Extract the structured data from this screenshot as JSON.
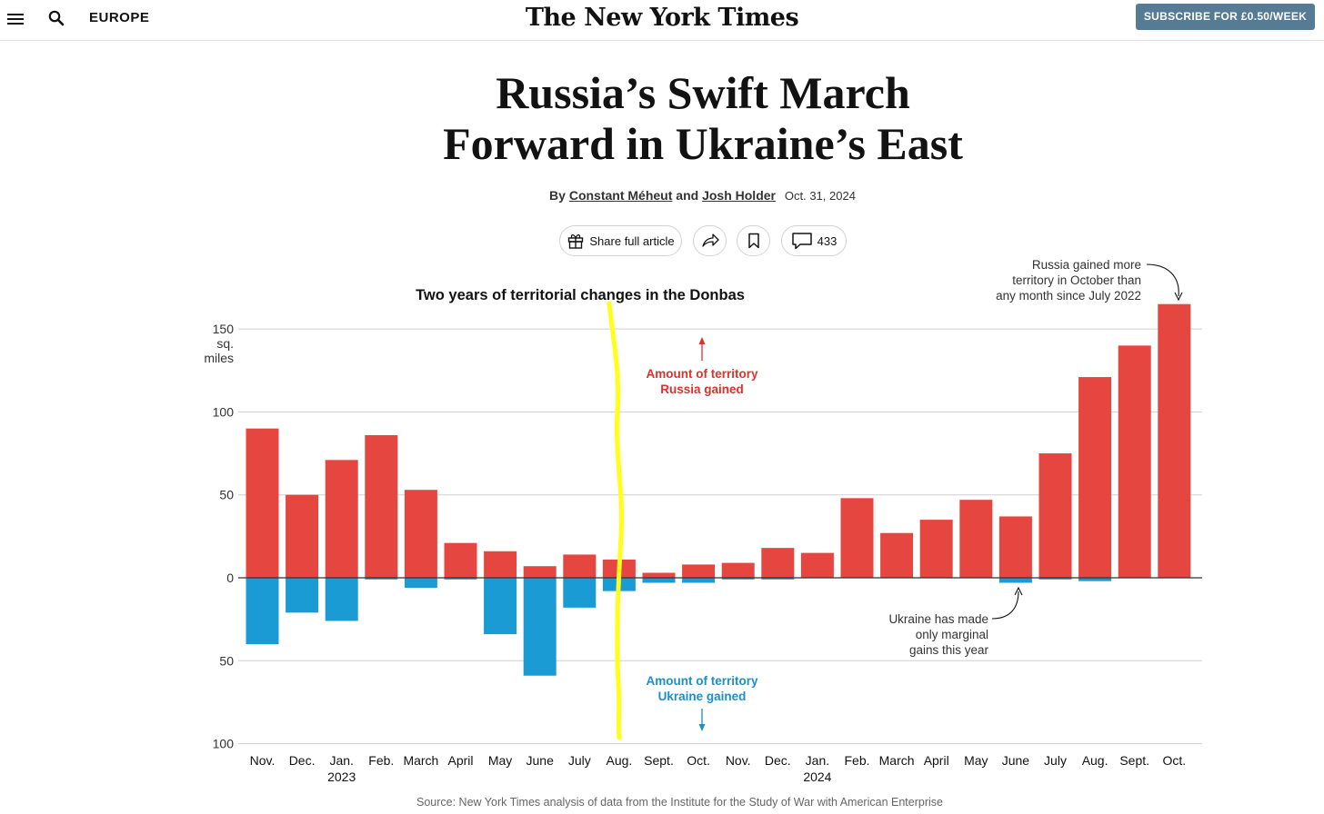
{
  "header": {
    "section": "EUROPE",
    "logo": "The New York Times",
    "subscribe_label": "SUBSCRIBE FOR £0.50/WEEK"
  },
  "article": {
    "headline_line1": "Russia’s Swift March",
    "headline_line2": "Forward in Ukraine’s East",
    "byline_prefix": "By",
    "author1": "Constant Méheut",
    "byline_and": "and",
    "author2": "Josh Holder",
    "date": "Oct. 31, 2024",
    "share_label": "Share full article",
    "comment_count": "433"
  },
  "icons": {
    "menu": "menu-icon",
    "search": "search-icon",
    "gift": "gift-icon",
    "share": "share-arrow-icon",
    "bookmark": "bookmark-icon",
    "comment": "comment-icon"
  },
  "colors": {
    "russia": "#e5463f",
    "ukraine": "#1b9bd3",
    "annotation_russia_text": "#d9342c",
    "annotation_ukraine_text": "#1c8fc7",
    "highlight_line": "#ffff1a",
    "subscribe_bg": "#567b95"
  },
  "chart_data": {
    "type": "bar",
    "title": "Two years of territorial changes in the Donbas",
    "unit_label_1": "sq.",
    "unit_label_2": "miles",
    "categories": [
      "Nov.",
      "Dec.",
      "Jan.",
      "Feb.",
      "March",
      "April",
      "May",
      "June",
      "July",
      "Aug.",
      "Sept.",
      "Oct.",
      "Nov.",
      "Dec.",
      "Jan.",
      "Feb.",
      "March",
      "April",
      "May",
      "June",
      "July",
      "Aug.",
      "Sept.",
      "Oct."
    ],
    "year_labels": [
      {
        "index": 2,
        "label": "2023"
      },
      {
        "index": 14,
        "label": "2024"
      }
    ],
    "series": [
      {
        "name": "Amount of territory Russia gained",
        "values": [
          90,
          50,
          71,
          86,
          53,
          21,
          16,
          7,
          14,
          11,
          3,
          8,
          9,
          18,
          15,
          48,
          27,
          35,
          47,
          37,
          75,
          121,
          140,
          165
        ]
      },
      {
        "name": "Amount of territory Ukraine gained",
        "values": [
          40,
          21,
          26,
          1,
          6,
          1,
          34,
          59,
          18,
          8,
          3,
          3,
          1,
          1,
          0,
          0,
          0,
          0,
          0,
          3,
          1,
          2,
          0,
          0
        ]
      }
    ],
    "y_ticks": [
      {
        "value": 150,
        "label": "150"
      },
      {
        "value": 100,
        "label": "100"
      },
      {
        "value": 50,
        "label": "50"
      },
      {
        "value": 0,
        "label": "0"
      },
      {
        "value": -50,
        "label": "50"
      },
      {
        "value": -100,
        "label": "100"
      }
    ],
    "ylim": [
      -100,
      165
    ],
    "grid": true,
    "annotations": {
      "russia_label_1": "Amount of territory",
      "russia_label_2": "Russia gained",
      "ukraine_label_1": "Amount of territory",
      "ukraine_label_2": "Ukraine gained",
      "top_note_1": "Russia gained more",
      "top_note_2": "territory in October than",
      "top_note_3": "any month since July 2022",
      "bottom_note_1": "Ukraine has made",
      "bottom_note_2": "only marginal",
      "bottom_note_3": "gains this year"
    },
    "source": "Source: New York Times analysis of data from the Institute for the Study of War with American Enterprise"
  }
}
